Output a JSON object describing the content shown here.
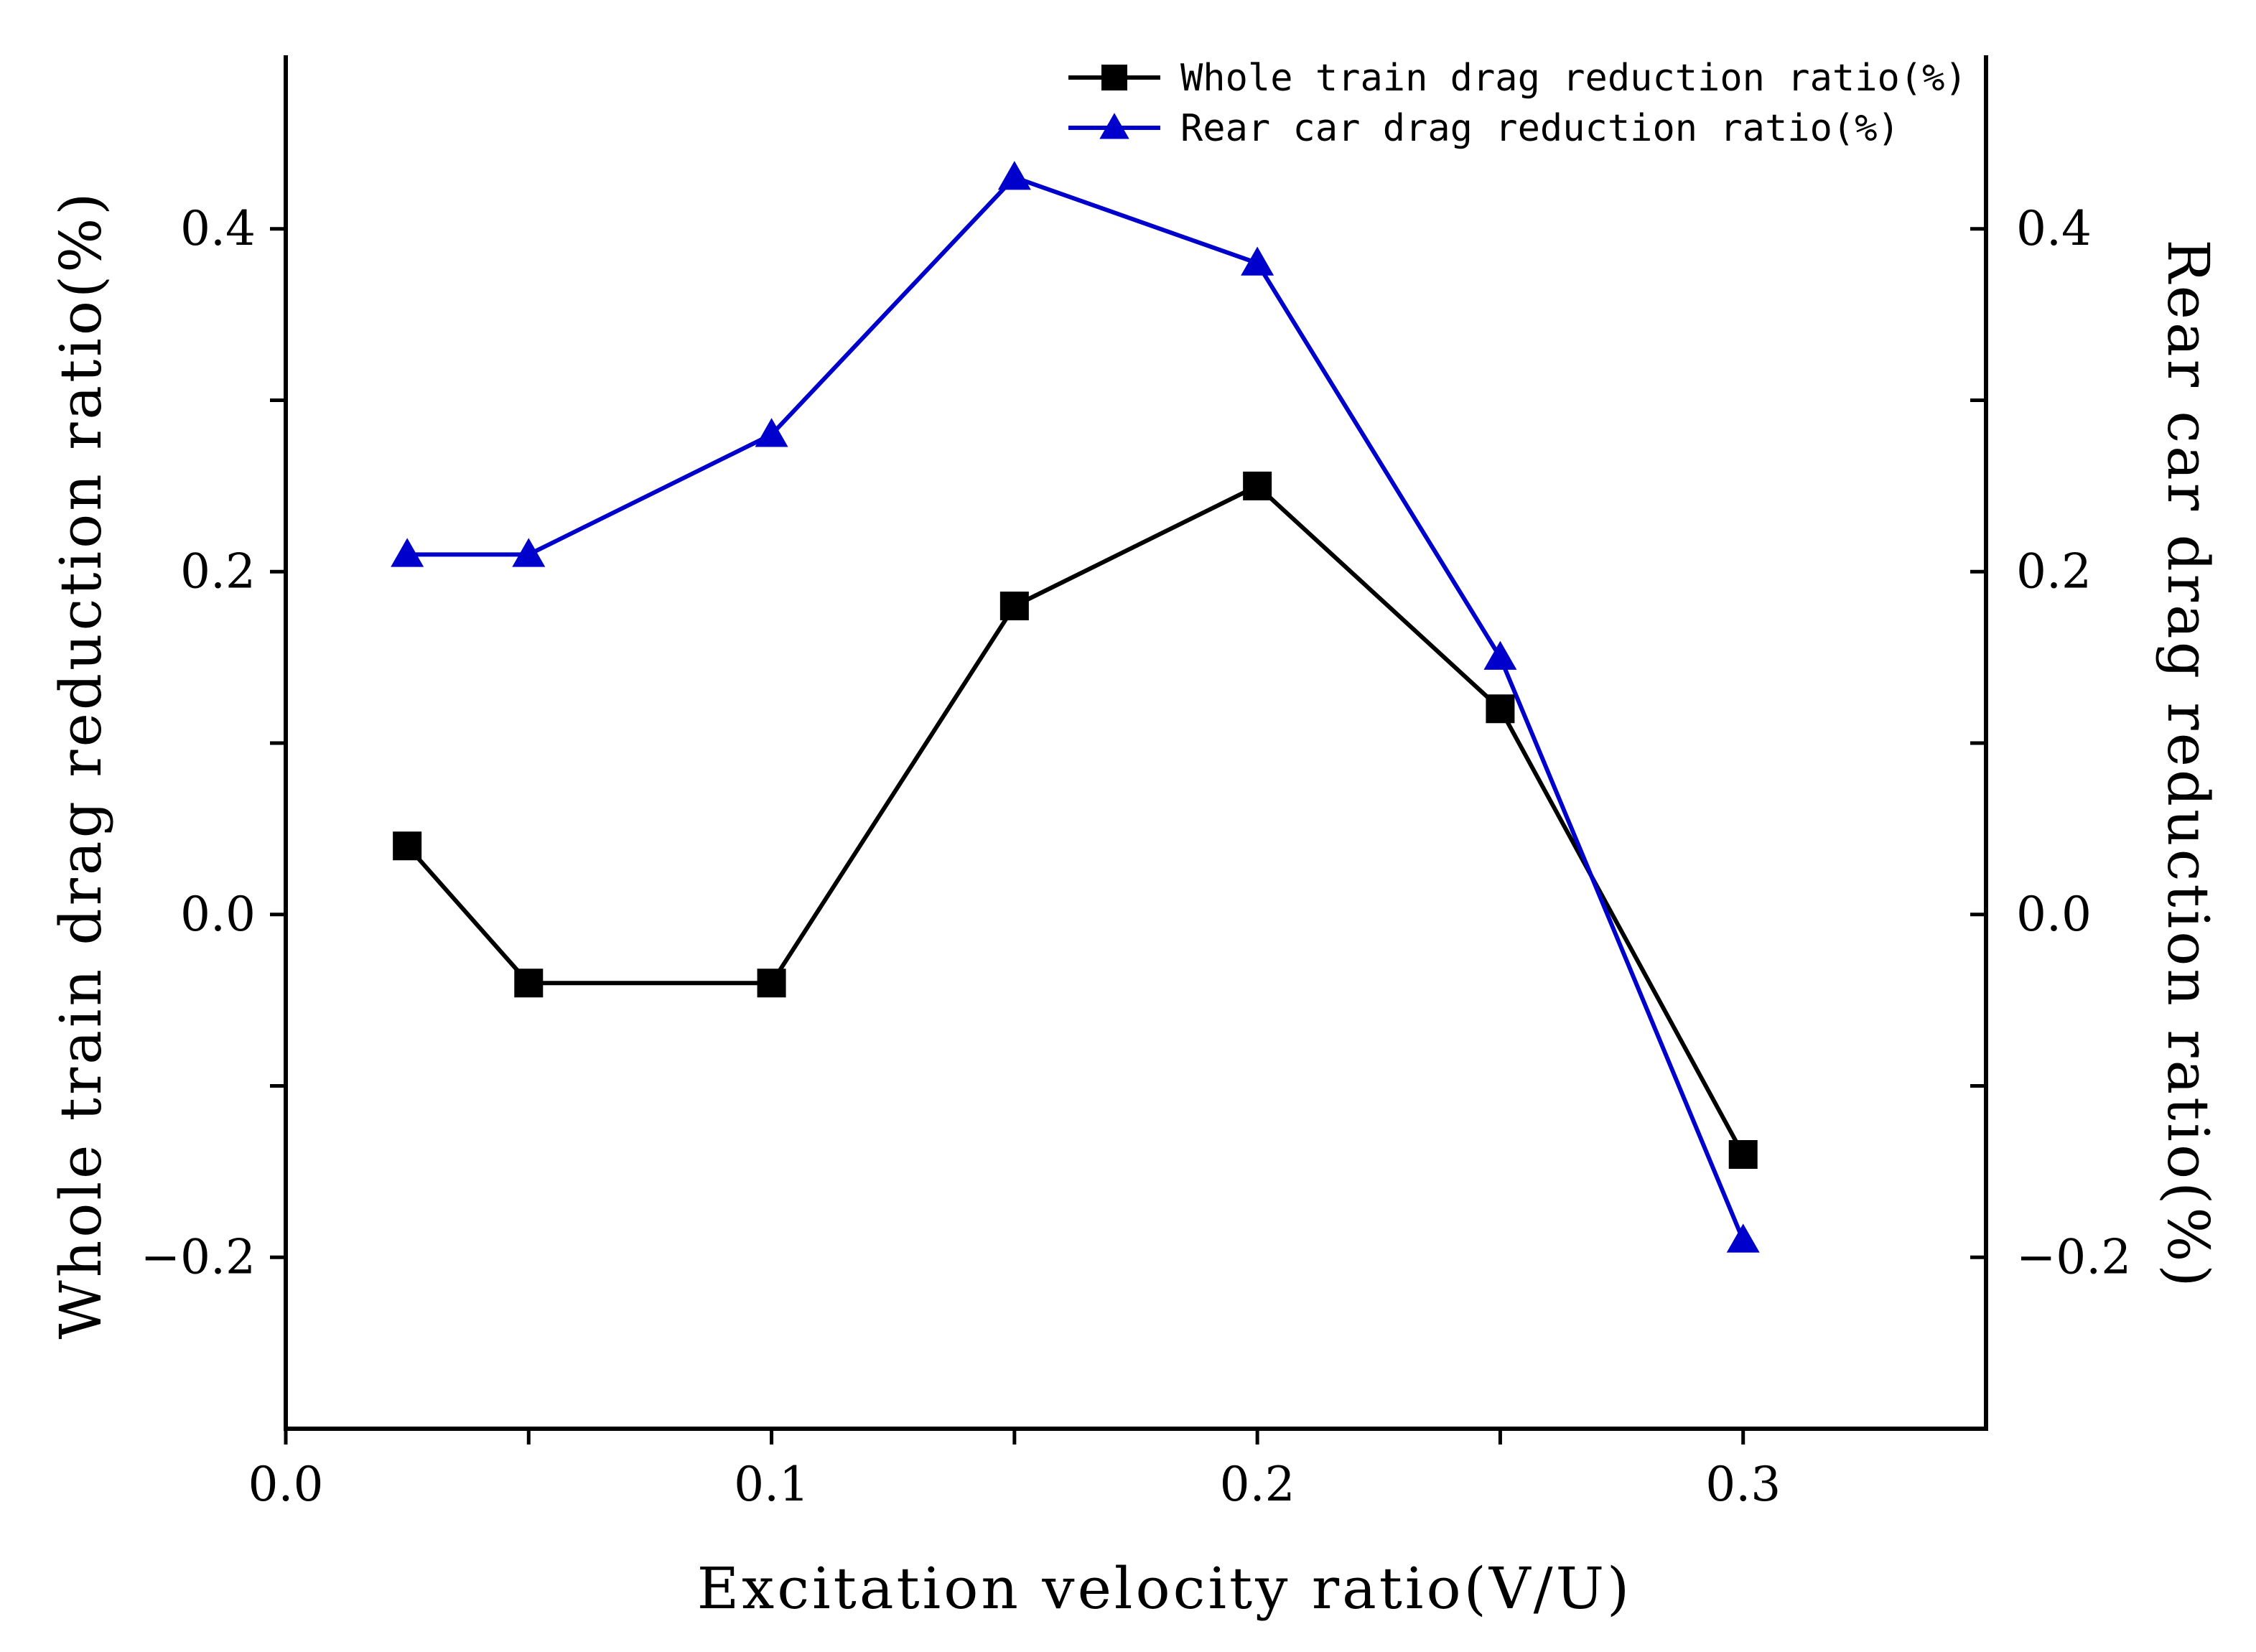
{
  "chart_data": {
    "type": "line",
    "xlabel": "Excitation velocity ratio(V/U)",
    "ylabel_left": "Whole train drag reduction ratio(%)",
    "ylabel_right": "Rear car drag reduction ratio(%)",
    "xlim": [
      0.0,
      0.35
    ],
    "ylim": [
      -0.3,
      0.5
    ],
    "x_ticks": [
      0.0,
      0.05,
      0.1,
      0.15,
      0.2,
      0.25,
      0.3
    ],
    "x_tick_labels": [
      "0.0",
      "",
      "0.1",
      "",
      "0.2",
      "",
      "0.3"
    ],
    "y_ticks": [
      -0.2,
      -0.1,
      0.0,
      0.1,
      0.2,
      0.3,
      0.4
    ],
    "y_tick_labels": [
      "-0.2",
      "",
      "0.0",
      "",
      "0.2",
      "",
      "0.4"
    ],
    "legend_position": "top-right",
    "series": [
      {
        "name": "Whole train drag reduction ratio(%)",
        "axis": "left",
        "marker": "square",
        "color": "#000000",
        "x": [
          0.025,
          0.05,
          0.1,
          0.15,
          0.2,
          0.25,
          0.3
        ],
        "values": [
          0.04,
          -0.04,
          -0.04,
          0.18,
          0.25,
          0.12,
          -0.14
        ]
      },
      {
        "name": "Rear car drag reduction ratio(%)",
        "axis": "right",
        "marker": "triangle",
        "color": "#0000CC",
        "x": [
          0.025,
          0.05,
          0.1,
          0.15,
          0.2,
          0.25,
          0.3
        ],
        "values": [
          0.21,
          0.21,
          0.28,
          0.43,
          0.38,
          0.15,
          -0.19
        ]
      }
    ]
  }
}
